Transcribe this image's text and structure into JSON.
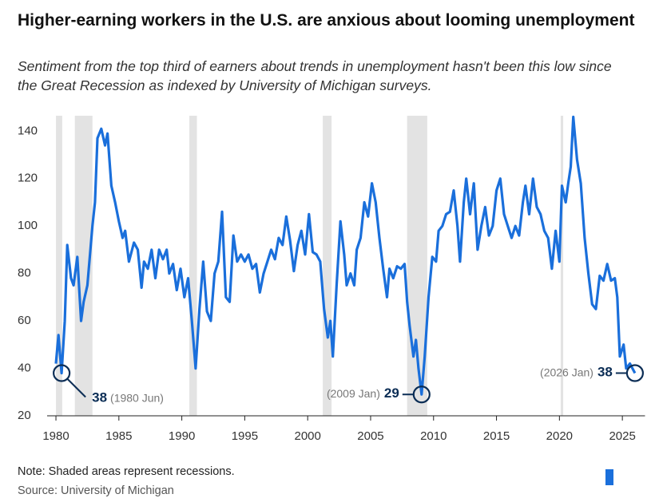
{
  "chart_data": {
    "type": "line",
    "title": "Higher-earning workers in the U.S. are anxious about looming unemployment",
    "subtitle": "Sentiment from the top third of earners about trends in unemployment hasn't been this low since the Great Recession as indexed by University of Michigan surveys.",
    "note": "Note: Shaded areas represent recessions.",
    "source": "Source: University of Michigan",
    "xlim": [
      1979.3,
      2026.8
    ],
    "ylim": [
      20,
      146.5
    ],
    "xticks": [
      1980,
      1985,
      1990,
      1995,
      2000,
      2005,
      2010,
      2015,
      2020,
      2025
    ],
    "yticks": [
      20,
      40,
      60,
      80,
      100,
      120,
      140
    ],
    "recessions": [
      [
        1980.0,
        1980.5
      ],
      [
        1981.5,
        1982.9
      ],
      [
        1990.6,
        1991.2
      ],
      [
        2001.2,
        2001.9
      ],
      [
        2007.9,
        2009.5
      ],
      [
        2020.1,
        2020.3
      ]
    ],
    "series": [
      {
        "color": "#1a6fdb",
        "x": [
          1980.0,
          1980.2,
          1980.45,
          1980.7,
          1980.9,
          1981.2,
          1981.4,
          1981.7,
          1982.0,
          1982.2,
          1982.5,
          1982.9,
          1983.1,
          1983.3,
          1983.6,
          1983.9,
          1984.1,
          1984.4,
          1984.7,
          1985.0,
          1985.3,
          1985.5,
          1985.8,
          1986.2,
          1986.5,
          1986.8,
          1987.0,
          1987.3,
          1987.6,
          1987.9,
          1988.2,
          1988.5,
          1988.8,
          1989.0,
          1989.3,
          1989.6,
          1989.9,
          1990.2,
          1990.5,
          1990.8,
          1991.1,
          1991.4,
          1991.7,
          1992.0,
          1992.3,
          1992.6,
          1992.9,
          1993.2,
          1993.5,
          1993.8,
          1994.1,
          1994.4,
          1994.7,
          1995.0,
          1995.3,
          1995.6,
          1995.9,
          1996.2,
          1996.5,
          1996.8,
          1997.1,
          1997.4,
          1997.7,
          1998.0,
          1998.3,
          1998.6,
          1998.9,
          1999.2,
          1999.5,
          1999.8,
          2000.1,
          2000.4,
          2000.7,
          2001.0,
          2001.3,
          2001.6,
          2001.8,
          2002.0,
          2002.3,
          2002.6,
          2002.9,
          2003.1,
          2003.4,
          2003.7,
          2003.9,
          2004.2,
          2004.5,
          2004.8,
          2005.1,
          2005.4,
          2005.7,
          2006.0,
          2006.3,
          2006.5,
          2006.8,
          2007.1,
          2007.4,
          2007.7,
          2007.9,
          2008.1,
          2008.4,
          2008.6,
          2008.8,
          2009.05,
          2009.3,
          2009.6,
          2009.9,
          2010.2,
          2010.4,
          2010.7,
          2011.0,
          2011.3,
          2011.6,
          2011.9,
          2012.1,
          2012.4,
          2012.6,
          2012.9,
          2013.2,
          2013.5,
          2013.8,
          2014.1,
          2014.4,
          2014.7,
          2015.0,
          2015.3,
          2015.6,
          2015.9,
          2016.2,
          2016.5,
          2016.8,
          2017.1,
          2017.3,
          2017.6,
          2017.9,
          2018.2,
          2018.5,
          2018.8,
          2019.1,
          2019.4,
          2019.7,
          2020.0,
          2020.2,
          2020.5,
          2020.7,
          2020.9,
          2021.1,
          2021.4,
          2021.7,
          2022.0,
          2022.3,
          2022.6,
          2022.9,
          2023.2,
          2023.5,
          2023.8,
          2024.1,
          2024.4,
          2024.6,
          2024.8,
          2025.1,
          2025.3,
          2025.6,
          2026.0
        ],
        "values": [
          42,
          54,
          38,
          60,
          92,
          78,
          75,
          87,
          60,
          68,
          75,
          100,
          110,
          137,
          141,
          134,
          139,
          117,
          110,
          102,
          95,
          98,
          85,
          93,
          90,
          74,
          85,
          82,
          90,
          78,
          90,
          86,
          90,
          80,
          84,
          73,
          82,
          70,
          78,
          60,
          40,
          65,
          85,
          64,
          60,
          80,
          85,
          106,
          70,
          68,
          96,
          85,
          88,
          85,
          88,
          82,
          84,
          72,
          80,
          85,
          90,
          86,
          95,
          92,
          104,
          94,
          81,
          92,
          98,
          88,
          105,
          89,
          88,
          85,
          65,
          53,
          60,
          45,
          75,
          102,
          88,
          75,
          80,
          75,
          90,
          95,
          110,
          104,
          118,
          110,
          95,
          82,
          70,
          82,
          78,
          83,
          82,
          84,
          68,
          58,
          45,
          52,
          40,
          29,
          45,
          70,
          87,
          85,
          98,
          100,
          105,
          106,
          115,
          100,
          85,
          110,
          120,
          105,
          118,
          90,
          100,
          108,
          96,
          100,
          115,
          120,
          105,
          100,
          95,
          100,
          96,
          110,
          117,
          105,
          120,
          108,
          105,
          98,
          95,
          82,
          98,
          85,
          117,
          110,
          118,
          125,
          146,
          128,
          118,
          95,
          80,
          67,
          65,
          79,
          77,
          84,
          77,
          78,
          70,
          45,
          50,
          40,
          42,
          38
        ]
      }
    ],
    "annotations": [
      {
        "x": 1980.45,
        "y": 38,
        "value": "38",
        "date": "(1980 Jun)"
      },
      {
        "x": 2009.05,
        "y": 29,
        "value": "29",
        "date": "(2009 Jan)"
      },
      {
        "x": 2026.0,
        "y": 38,
        "value": "38",
        "date": "(2026 Jan)"
      }
    ]
  }
}
